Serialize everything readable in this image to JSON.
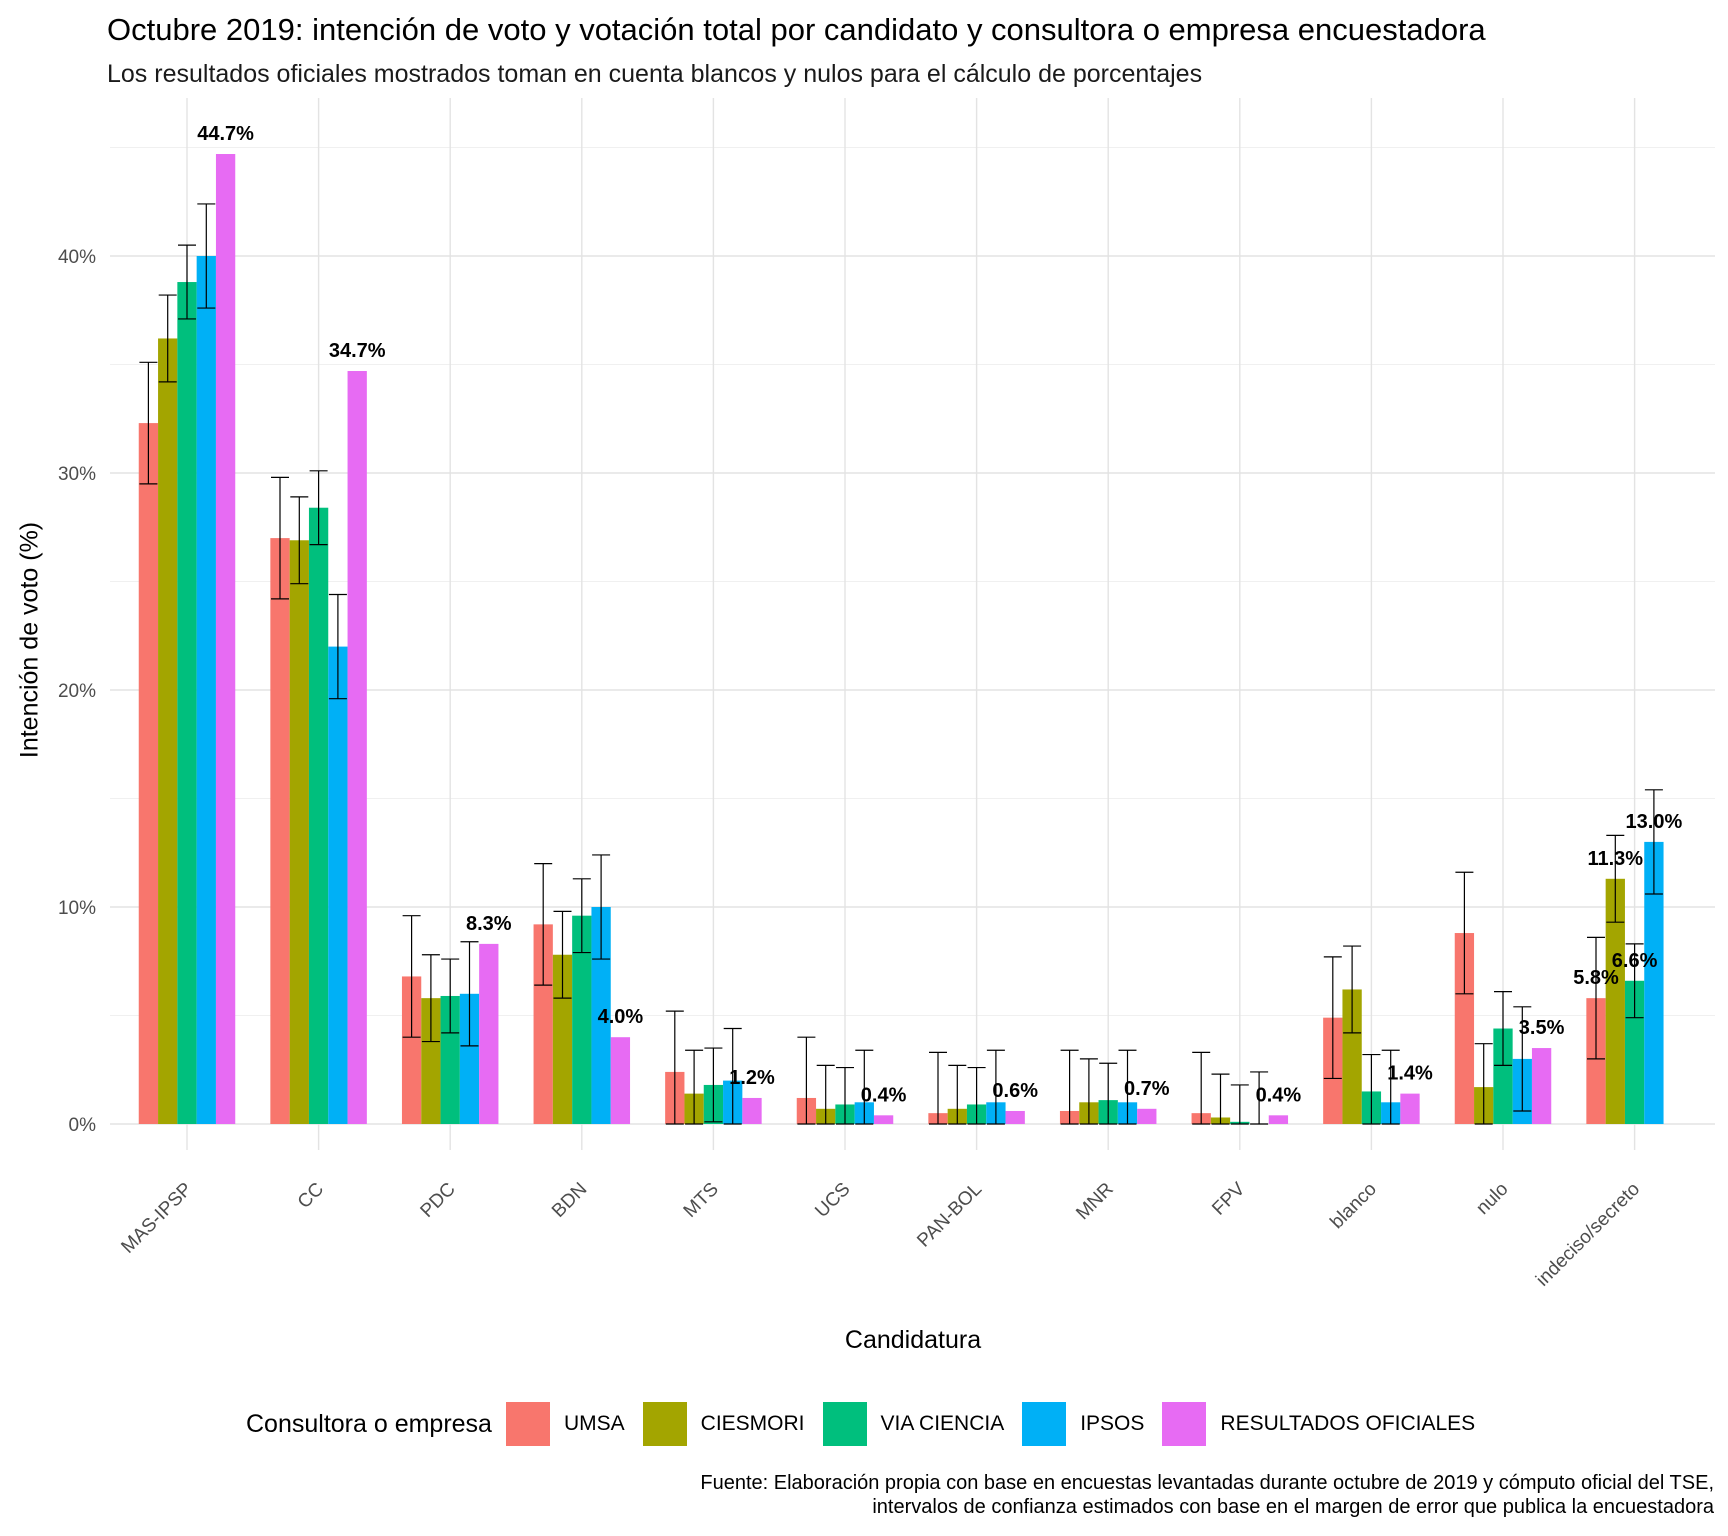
{
  "chart_data": {
    "type": "bar",
    "title": "Octubre 2019: intención de voto y votación total por candidato y consultora o empresa encuestadora",
    "subtitle": "Los resultados oficiales mostrados toman en cuenta blancos y nulos para el cálculo de porcentajes",
    "xlabel": "Candidatura",
    "ylabel": "Intención de voto (%)",
    "ylim": [
      0,
      46
    ],
    "y_ticks": [
      0,
      10,
      20,
      30,
      40
    ],
    "y_tick_labels": [
      "0%",
      "10%",
      "20%",
      "30%",
      "40%"
    ],
    "grid": true,
    "legend_title": "Consultora o empresa",
    "legend_position": "bottom",
    "caption": [
      "Fuente: Elaboración propia con base en encuestas levantadas durante octubre de 2019 y cómputo oficial del TSE,",
      "intervalos de confianza estimados con base en el margen de error que publica la encuestadora"
    ],
    "categories": [
      "MAS-IPSP",
      "CC",
      "PDC",
      "BDN",
      "MTS",
      "UCS",
      "PAN-BOL",
      "MNR",
      "FPV",
      "blanco",
      "nulo",
      "indeciso/secreto"
    ],
    "series": [
      {
        "name": "UMSA",
        "color": "#F8766D",
        "values": [
          32.3,
          27.0,
          6.8,
          9.2,
          2.4,
          1.2,
          0.5,
          0.6,
          0.5,
          4.9,
          8.8,
          5.8
        ],
        "lower": [
          29.5,
          24.2,
          4.0,
          6.4,
          0.0,
          0.0,
          0.0,
          0.0,
          0.0,
          2.1,
          6.0,
          3.0
        ],
        "upper": [
          35.1,
          29.8,
          9.6,
          12.0,
          5.2,
          4.0,
          3.3,
          3.4,
          3.3,
          7.7,
          11.6,
          8.6
        ],
        "labels": [
          "",
          "",
          "",
          "",
          "",
          "",
          "",
          "",
          "",
          "",
          "",
          "5.8%"
        ]
      },
      {
        "name": "CIESMORI",
        "color": "#A3A500",
        "values": [
          36.2,
          26.9,
          5.8,
          7.8,
          1.4,
          0.7,
          0.7,
          1.0,
          0.3,
          6.2,
          1.7,
          11.3
        ],
        "lower": [
          34.2,
          24.9,
          3.8,
          5.8,
          0.0,
          0.0,
          0.0,
          0.0,
          0.0,
          4.2,
          0.0,
          9.3
        ],
        "upper": [
          38.2,
          28.9,
          7.8,
          9.8,
          3.4,
          2.7,
          2.7,
          3.0,
          2.3,
          8.2,
          3.7,
          13.3
        ],
        "labels": [
          "",
          "",
          "",
          "",
          "",
          "",
          "",
          "",
          "",
          "",
          "",
          "11.3%"
        ]
      },
      {
        "name": "VIA CIENCIA",
        "color": "#00BF7D",
        "values": [
          38.8,
          28.4,
          5.9,
          9.6,
          1.8,
          0.9,
          0.9,
          1.1,
          0.1,
          1.5,
          4.4,
          6.6
        ],
        "lower": [
          37.1,
          26.7,
          4.2,
          7.9,
          0.1,
          0.0,
          0.0,
          0.0,
          0.0,
          0.0,
          2.7,
          4.9
        ],
        "upper": [
          40.5,
          30.1,
          7.6,
          11.3,
          3.5,
          2.6,
          2.6,
          2.8,
          1.8,
          3.2,
          6.1,
          8.3
        ],
        "labels": [
          "",
          "",
          "",
          "",
          "",
          "",
          "",
          "",
          "",
          "",
          "",
          "6.6%"
        ]
      },
      {
        "name": "IPSOS",
        "color": "#00B0F6",
        "values": [
          40.0,
          22.0,
          6.0,
          10.0,
          2.0,
          1.0,
          1.0,
          1.0,
          0.0,
          1.0,
          3.0,
          13.0
        ],
        "lower": [
          37.6,
          19.6,
          3.6,
          7.6,
          0.0,
          0.0,
          0.0,
          0.0,
          0.0,
          0.0,
          0.6,
          10.6
        ],
        "upper": [
          42.4,
          24.4,
          8.4,
          12.4,
          4.4,
          3.4,
          3.4,
          3.4,
          2.4,
          3.4,
          5.4,
          15.4
        ],
        "labels": [
          "",
          "",
          "",
          "",
          "",
          "",
          "",
          "",
          "",
          "",
          "",
          "13.0%"
        ]
      },
      {
        "name": "RESULTADOS OFICIALES",
        "color": "#E76BF3",
        "values": [
          44.7,
          34.7,
          8.3,
          4.0,
          1.2,
          0.4,
          0.6,
          0.7,
          0.4,
          1.4,
          3.5,
          null
        ],
        "labels": [
          "44.7%",
          "34.7%",
          "8.3%",
          "4.0%",
          "1.2%",
          "0.4%",
          "0.6%",
          "0.7%",
          "0.4%",
          "1.4%",
          "3.5%",
          ""
        ]
      }
    ]
  }
}
